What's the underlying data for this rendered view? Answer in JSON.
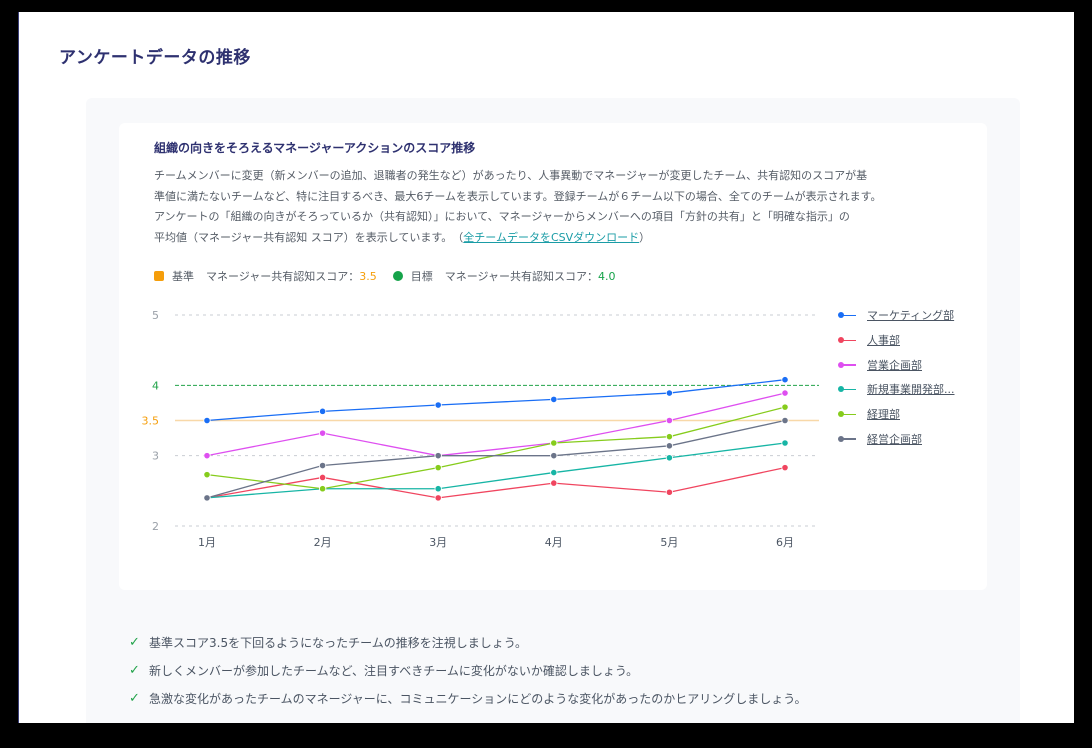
{
  "page": {
    "title": "アンケートデータの推移"
  },
  "card": {
    "title": "組織の向きをそろえるマネージャーアクションのスコア推移",
    "description_lines": [
      "チームメンバーに変更（新メンバーの追加、退職者の発生など）があったり、人事異動でマネージャーが変更したチーム、共有認知のスコアが基",
      "準値に満たないチームなど、特に注目するべき、最大6チームを表示しています。登録チームが６チーム以下の場合、全てのチームが表示されます。",
      "アンケートの「組織の向きがそろっているか（共有認知）」において、マネージャーからメンバーへの項目「方針の共有」と「明確な指示」の",
      "平均値（マネージャー共有認知 スコア）を表示しています。　（"
    ],
    "csv_link_label": "全チームデータをCSVダウンロード",
    "csv_link_suffix": "）",
    "reference": {
      "baseline_label": "基準",
      "baseline_text": "マネージャー共有認知スコア：",
      "baseline_value": "3.5",
      "baseline_color": "#f59e0b",
      "target_label": "目標",
      "target_text": "マネージャー共有認知スコア：",
      "target_value": "4.0",
      "target_color": "#16a34a"
    }
  },
  "chart_data": {
    "type": "line",
    "title": "組織の向きをそろえるマネージャーアクションのスコア推移",
    "xlabel": "",
    "ylabel": "マネージャー共有認知スコア",
    "categories": [
      "1月",
      "2月",
      "3月",
      "4月",
      "5月",
      "6月"
    ],
    "y_ticks": [
      "5",
      "4",
      "3.5",
      "3",
      "2"
    ],
    "ylim": [
      2,
      5
    ],
    "grid": true,
    "legend_position": "right",
    "reference_lines": [
      {
        "name": "基準",
        "value": 3.5,
        "color": "#f8d8a8"
      },
      {
        "name": "目標",
        "value": 4.0,
        "color": "#22a34a"
      }
    ],
    "series": [
      {
        "name": "マーケティング部",
        "color": "#1a6ef5",
        "values": [
          3.5,
          3.63,
          3.72,
          3.8,
          3.89,
          4.08
        ]
      },
      {
        "name": "人事部",
        "color": "#f0455f",
        "values": [
          2.4,
          2.69,
          2.4,
          2.61,
          2.48,
          2.83
        ]
      },
      {
        "name": "営業企画部",
        "color": "#de4ff0",
        "values": [
          3.0,
          3.32,
          3.0,
          3.18,
          3.5,
          3.89
        ]
      },
      {
        "name": "新規事業開発部...",
        "color": "#17b5a5",
        "values": [
          2.4,
          2.53,
          2.53,
          2.76,
          2.97,
          3.18
        ]
      },
      {
        "name": "経理部",
        "color": "#86cc1c",
        "values": [
          2.73,
          2.53,
          2.83,
          3.18,
          3.27,
          3.69
        ]
      },
      {
        "name": "経営企画部",
        "color": "#6b7489",
        "values": [
          2.4,
          2.86,
          3.0,
          3.0,
          3.14,
          3.5
        ]
      }
    ]
  },
  "tips": [
    "基準スコア3.5を下回るようになったチームの推移を注視しましょう。",
    "新しくメンバーが参加したチームなど、注目すべきチームに変化がないか確認しましょう。",
    "急激な変化があったチームのマネージャーに、コミュニケーションにどのような変化があったのかヒアリングしましょう。"
  ],
  "icons": {
    "check": "✓"
  }
}
